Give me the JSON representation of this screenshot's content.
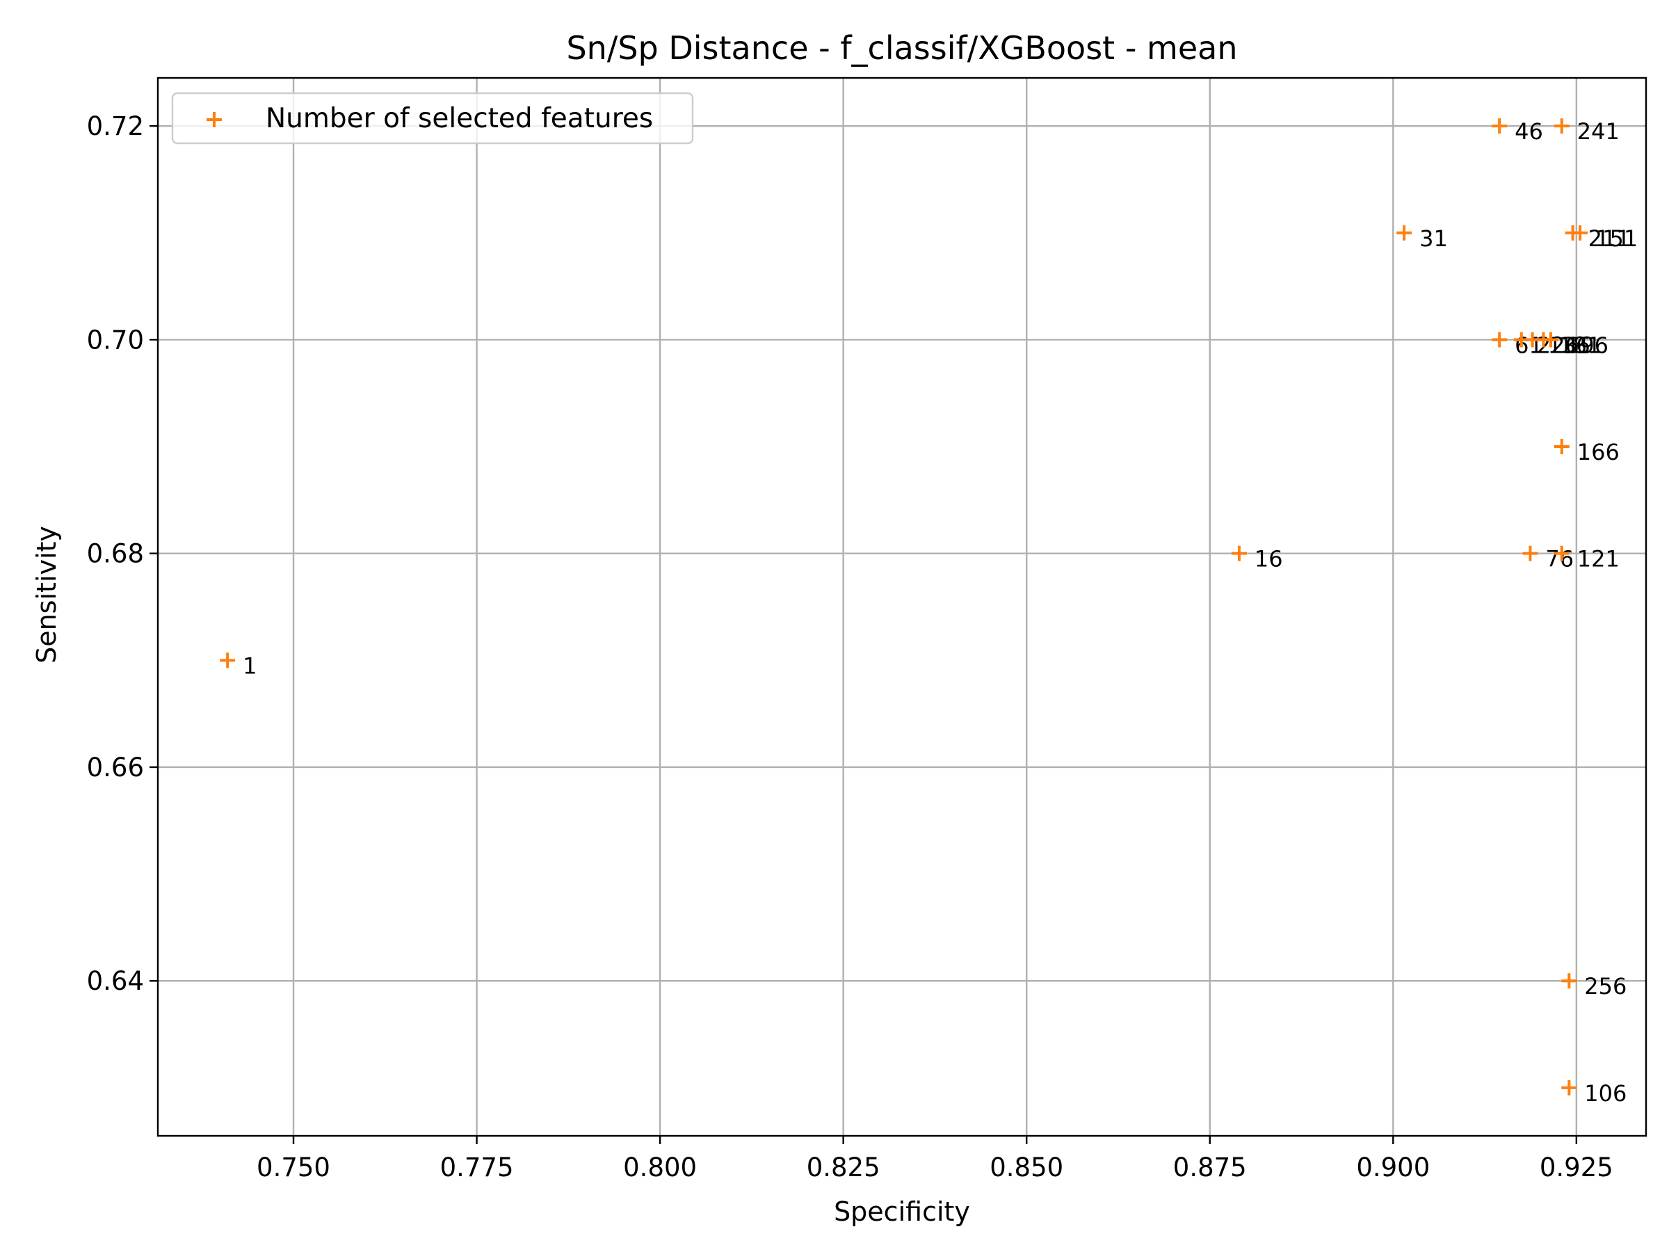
{
  "chart_data": {
    "type": "scatter",
    "title": "Sn/Sp Distance - f_classif/XGBoost - mean",
    "xlabel": "Specificity",
    "ylabel": "Sensitivity",
    "xlim": [
      0.7315,
      0.9345
    ],
    "ylim": [
      0.6255,
      0.7245
    ],
    "xticks": [
      0.75,
      0.775,
      0.8,
      0.825,
      0.85,
      0.875,
      0.9,
      0.925
    ],
    "xtick_labels": [
      "0.750",
      "0.775",
      "0.800",
      "0.825",
      "0.850",
      "0.875",
      "0.900",
      "0.925"
    ],
    "yticks": [
      0.64,
      0.66,
      0.68,
      0.7,
      0.72
    ],
    "ytick_labels": [
      "0.64",
      "0.66",
      "0.68",
      "0.70",
      "0.72"
    ],
    "grid": true,
    "legend_position": "top-left",
    "marker": "plus",
    "marker_color": "#ff7f0e",
    "series": [
      {
        "name": "Number of selected features",
        "points": [
          {
            "x": 0.741,
            "y": 0.67,
            "label": "1"
          },
          {
            "x": 0.879,
            "y": 0.68,
            "label": "16"
          },
          {
            "x": 0.9015,
            "y": 0.71,
            "label": "31"
          },
          {
            "x": 0.9145,
            "y": 0.72,
            "label": "46"
          },
          {
            "x": 0.923,
            "y": 0.72,
            "label": "241"
          },
          {
            "x": 0.9245,
            "y": 0.71,
            "label": "211"
          },
          {
            "x": 0.9255,
            "y": 0.71,
            "label": "151"
          },
          {
            "x": 0.9145,
            "y": 0.7,
            "label": "61"
          },
          {
            "x": 0.9175,
            "y": 0.7,
            "label": "226"
          },
          {
            "x": 0.919,
            "y": 0.7,
            "label": "136"
          },
          {
            "x": 0.9205,
            "y": 0.7,
            "label": "181"
          },
          {
            "x": 0.9215,
            "y": 0.7,
            "label": "196"
          },
          {
            "x": 0.923,
            "y": 0.69,
            "label": "166"
          },
          {
            "x": 0.9187,
            "y": 0.68,
            "label": "76"
          },
          {
            "x": 0.923,
            "y": 0.68,
            "label": "121"
          },
          {
            "x": 0.924,
            "y": 0.64,
            "label": "256"
          },
          {
            "x": 0.924,
            "y": 0.63,
            "label": "106"
          }
        ]
      }
    ]
  }
}
